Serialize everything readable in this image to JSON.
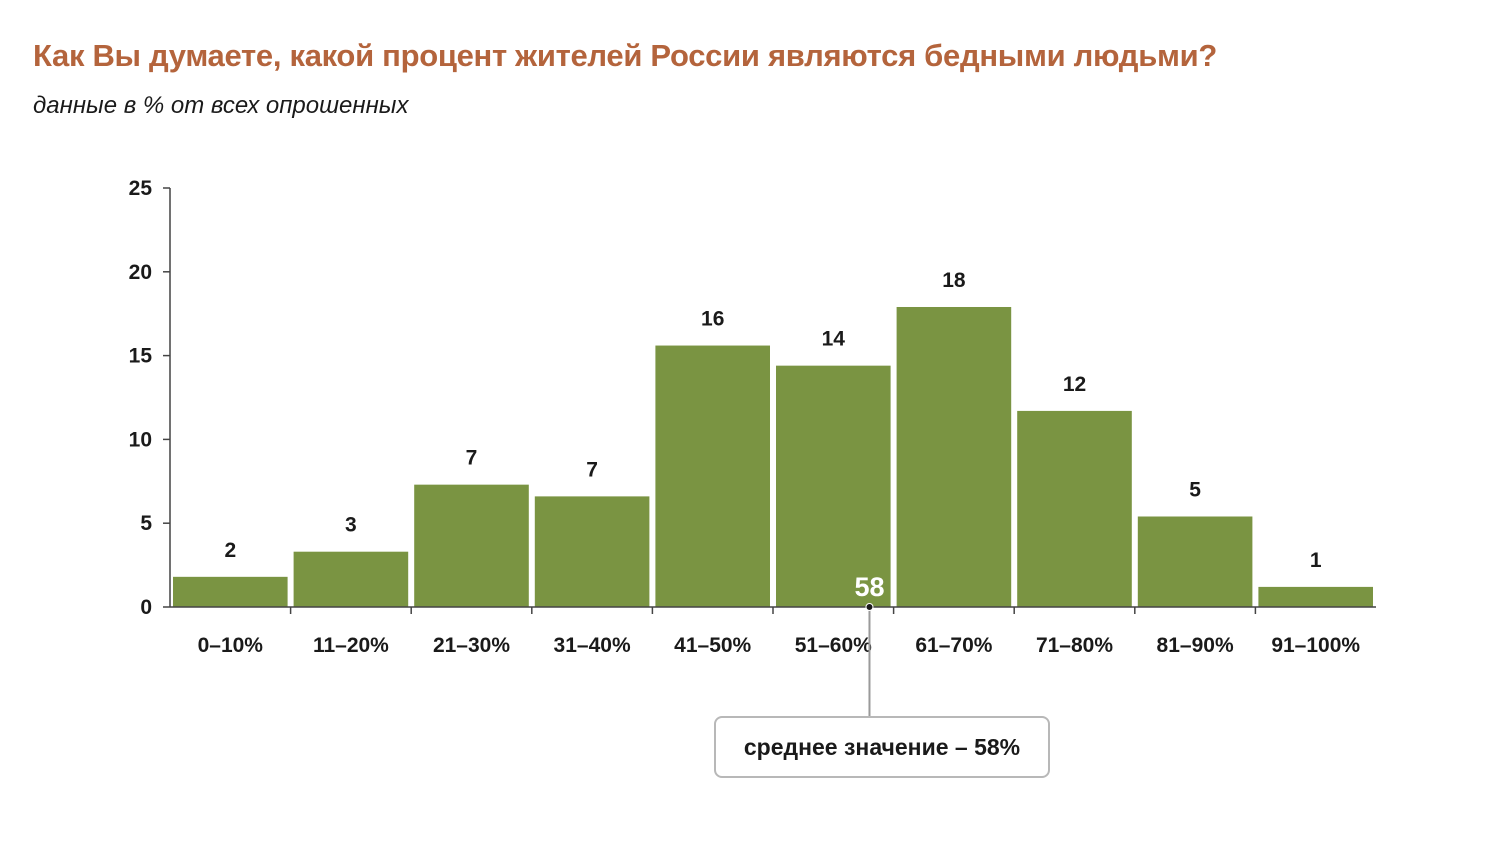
{
  "title": "Как Вы думаете, какой процент жителей России являются бедными людьми?",
  "subtitle": "данные в % от всех опрошенных",
  "colors": {
    "title": "#b4643c",
    "bar": "#7a9442",
    "axis": "#444444",
    "text": "#1a1a1a",
    "callout_border": "#b8b8b8"
  },
  "chart_data": {
    "type": "bar",
    "categories": [
      "0–10%",
      "11–20%",
      "21–30%",
      "31–40%",
      "41–50%",
      "51–60%",
      "61–70%",
      "71–80%",
      "81–90%",
      "91–100%"
    ],
    "values": [
      1.8,
      3.3,
      7.3,
      6.6,
      15.6,
      14.4,
      17.9,
      11.7,
      5.4,
      1.2
    ],
    "value_labels": [
      "2",
      "3",
      "7",
      "7",
      "16",
      "14",
      "18",
      "12",
      "5",
      "1"
    ],
    "ylim": [
      0,
      25
    ],
    "yticks": [
      0,
      5,
      10,
      15,
      20,
      25
    ],
    "grid": false,
    "mean_marker": {
      "value": 58,
      "label": "58",
      "callout": "среднее значение – 58%"
    }
  }
}
